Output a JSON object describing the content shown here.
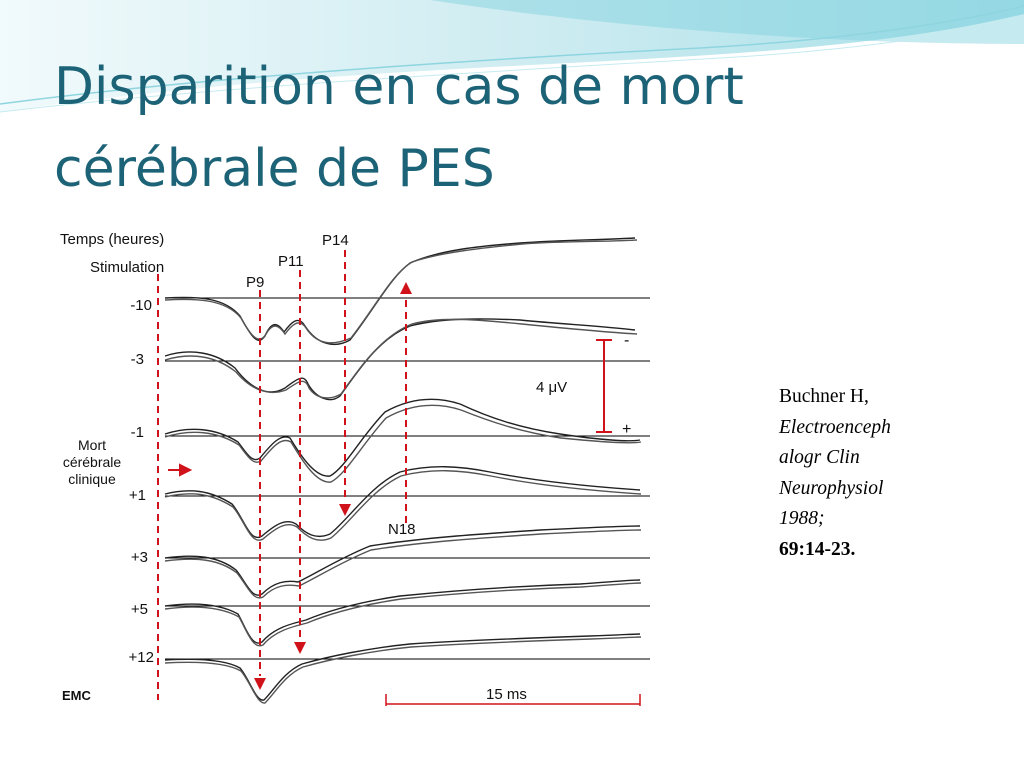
{
  "slide": {
    "title_line1": "Disparition en cas de mort",
    "title_line2": "cérébrale de PES",
    "accent_color": "#1d6377"
  },
  "figure": {
    "header_time": "Temps (heures)",
    "header_stimulation": "Stimulation",
    "peaks": {
      "p9": "P9",
      "p11": "P11",
      "p14": "P14",
      "n18": "N18"
    },
    "rows": [
      "-10",
      "-3",
      "-1",
      "+1",
      "+3",
      "+5",
      "+12"
    ],
    "brain_death_label": [
      "Mort",
      "cérébrale",
      "clinique"
    ],
    "amplitude_scale": "4 μV",
    "polarity_minus": "-",
    "polarity_plus": "+",
    "time_scale": "15 ms",
    "corner_mark": "EMC",
    "marker_color": "#d0121b"
  },
  "citation": {
    "author": "Buchner H,",
    "journal_line1": "Electroenceph",
    "journal_line2": "alogr Clin",
    "journal_line3": "Neurophysiol",
    "year": "1988;",
    "volume": "69:14-23."
  }
}
